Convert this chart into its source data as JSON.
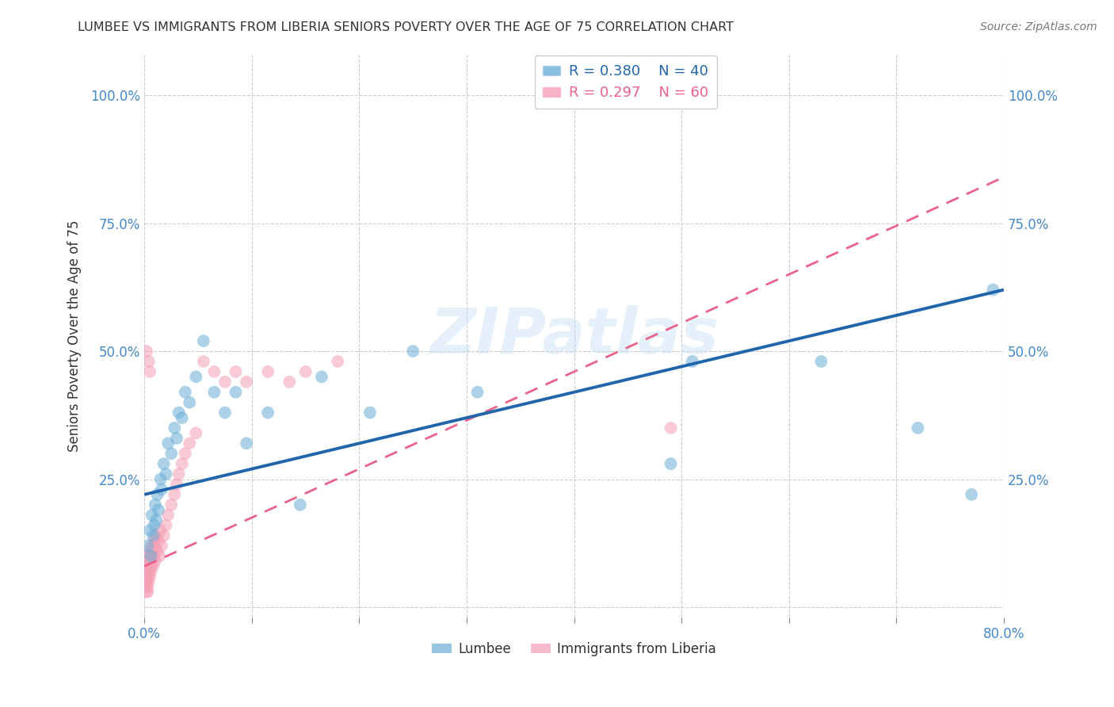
{
  "title": "LUMBEE VS IMMIGRANTS FROM LIBERIA SENIORS POVERTY OVER THE AGE OF 75 CORRELATION CHART",
  "source": "Source: ZipAtlas.com",
  "ylabel": "Seniors Poverty Over the Age of 75",
  "xlim": [
    0.0,
    0.8
  ],
  "ylim": [
    -0.02,
    1.08
  ],
  "lumbee_R": 0.38,
  "lumbee_N": 40,
  "liberia_R": 0.297,
  "liberia_N": 60,
  "lumbee_color": "#6baed6",
  "liberia_color": "#f4a0b5",
  "lumbee_line_color": "#2166ac",
  "liberia_line_color": "#e8628a",
  "lumbee_line_intercept": 0.22,
  "lumbee_line_slope": 0.5,
  "liberia_line_intercept": 0.08,
  "liberia_line_slope": 0.95,
  "lumbee_x": [
    0.003,
    0.005,
    0.006,
    0.007,
    0.008,
    0.009,
    0.01,
    0.011,
    0.012,
    0.013,
    0.015,
    0.016,
    0.018,
    0.02,
    0.022,
    0.025,
    0.028,
    0.03,
    0.032,
    0.035,
    0.038,
    0.042,
    0.048,
    0.055,
    0.065,
    0.075,
    0.085,
    0.095,
    0.115,
    0.145,
    0.165,
    0.21,
    0.25,
    0.31,
    0.49,
    0.51,
    0.63,
    0.72,
    0.77,
    0.79
  ],
  "lumbee_y": [
    0.12,
    0.15,
    0.1,
    0.18,
    0.14,
    0.16,
    0.2,
    0.17,
    0.22,
    0.19,
    0.25,
    0.23,
    0.28,
    0.26,
    0.32,
    0.3,
    0.35,
    0.33,
    0.38,
    0.37,
    0.42,
    0.4,
    0.45,
    0.52,
    0.42,
    0.38,
    0.42,
    0.32,
    0.38,
    0.2,
    0.45,
    0.38,
    0.5,
    0.42,
    0.28,
    0.48,
    0.48,
    0.35,
    0.22,
    0.62
  ],
  "liberia_x": [
    0.001,
    0.002,
    0.002,
    0.002,
    0.003,
    0.003,
    0.003,
    0.004,
    0.004,
    0.004,
    0.005,
    0.005,
    0.005,
    0.006,
    0.006,
    0.006,
    0.007,
    0.007,
    0.008,
    0.008,
    0.009,
    0.009,
    0.01,
    0.01,
    0.011,
    0.012,
    0.013,
    0.014,
    0.015,
    0.016,
    0.018,
    0.02,
    0.022,
    0.025,
    0.028,
    0.03,
    0.032,
    0.035,
    0.038,
    0.042,
    0.048,
    0.055,
    0.065,
    0.075,
    0.085,
    0.095,
    0.115,
    0.135,
    0.15,
    0.18,
    0.001,
    0.002,
    0.002,
    0.003,
    0.003,
    0.004,
    0.004,
    0.005,
    0.49,
    0.002
  ],
  "liberia_y": [
    0.05,
    0.08,
    0.06,
    0.1,
    0.07,
    0.09,
    0.06,
    0.08,
    0.1,
    0.07,
    0.09,
    0.06,
    0.11,
    0.08,
    0.1,
    0.07,
    0.12,
    0.09,
    0.11,
    0.08,
    0.13,
    0.1,
    0.12,
    0.09,
    0.14,
    0.11,
    0.13,
    0.1,
    0.15,
    0.12,
    0.14,
    0.16,
    0.18,
    0.2,
    0.22,
    0.24,
    0.26,
    0.28,
    0.3,
    0.32,
    0.34,
    0.48,
    0.46,
    0.44,
    0.46,
    0.44,
    0.46,
    0.44,
    0.46,
    0.48,
    0.04,
    0.03,
    0.05,
    0.04,
    0.03,
    0.05,
    0.48,
    0.46,
    0.35,
    0.5
  ],
  "watermark": "ZIPatlas",
  "background_color": "#ffffff",
  "grid_color": "#cccccc"
}
